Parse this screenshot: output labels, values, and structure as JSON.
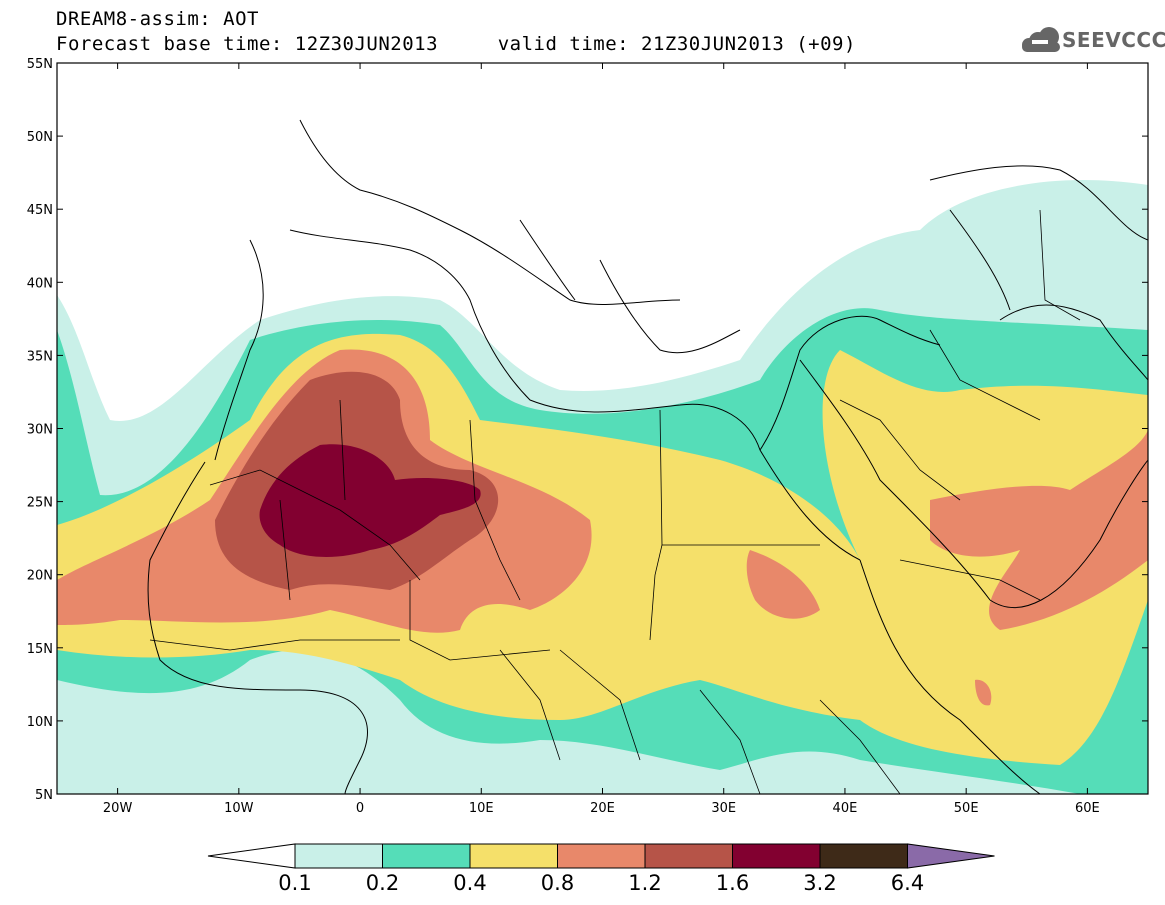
{
  "header": {
    "title_line1": "DREAM8-assim: AOT",
    "title_line2": "Forecast base time: 12Z30JUN2013     valid time: 21Z30JUN2013 (+09)",
    "logo_text": "SEEVCCC"
  },
  "map": {
    "lon_range": [
      -25,
      65
    ],
    "lat_range": [
      5,
      55
    ],
    "lat_labels": [
      "55N",
      "50N",
      "45N",
      "40N",
      "35N",
      "30N",
      "25N",
      "20N",
      "15N",
      "10N",
      "5N"
    ],
    "lat_values": [
      55,
      50,
      45,
      40,
      35,
      30,
      25,
      20,
      15,
      10,
      5
    ],
    "lon_labels": [
      "20W",
      "10W",
      "0",
      "10E",
      "20E",
      "30E",
      "40E",
      "50E",
      "60E"
    ],
    "lon_values": [
      -20,
      -10,
      0,
      10,
      20,
      30,
      40,
      50,
      60
    ]
  },
  "colorbar": {
    "levels": [
      "0.1",
      "0.2",
      "0.4",
      "0.8",
      "1.2",
      "1.6",
      "3.2",
      "6.4"
    ],
    "colors": [
      "#ffffff",
      "#c9f0e8",
      "#55ddb8",
      "#f5e06a",
      "#e8886a",
      "#b65448",
      "#820030",
      "#3e2a18",
      "#8a6aa8"
    ]
  }
}
